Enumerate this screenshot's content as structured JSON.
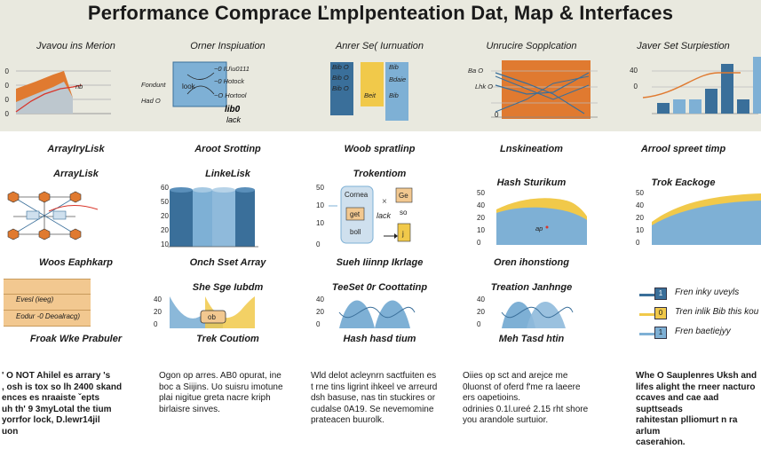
{
  "title": "Performance Comprace Ľmplpenteation Dat, Map & Interfaces",
  "colors": {
    "orange": "#e07a30",
    "blue": "#7eb0d5",
    "dark_blue": "#3a6f9a",
    "yellow": "#f1c94a",
    "red": "#d9362b",
    "band": "#e9e9df"
  },
  "columns": [
    {
      "top_title": "Jvavou ins Merion",
      "top_ticks": [
        "0",
        "0",
        "0",
        "0"
      ],
      "top_note": "nb",
      "section_a": "ArrayIryLisk",
      "section_b": "ArrayLisk",
      "section_c": "Woos Eaphkarp",
      "table_rows": [
        "Evesl (ieeg)",
        "Eodur -0 Deoalracg)"
      ],
      "section_d": "Froak Wke Prabuler",
      "paragraph": "' O NOT Ahilel es arrary 's\n, osh is tox so lh 2400 skand\nences es nraaiste ˇepts\nuh th' 9 3myLotal the tium\nyorrfor lock, D.lewr14jil\nuon"
    },
    {
      "top_title": "Orner Inspiuation",
      "top_labels": [
        "Fondunt",
        "Had O"
      ],
      "top_box_text": [
        "look",
        "~0 IU\\u0111",
        "~0 Hotock",
        "~O Hortool"
      ],
      "top_note_1": "lib0",
      "top_note_2": "lack",
      "section_a": "Aroot Srottinp",
      "section_b": "LinkeLisk",
      "ticks": [
        "60",
        "50",
        "20",
        "20",
        "10"
      ],
      "section_c": "Onch Sset Array",
      "section_d": "She Sge Iubdm",
      "wave_ticks": [
        "40",
        "20",
        "0"
      ],
      "wave_label": "ob",
      "section_e": "Trek Coutiom",
      "paragraph": "Ogon op arres. AB0 opurat, ine\nboc a Siijins. Uo suisru imotune\nplai nigitue greta nacre kriph\nbirlaisre sinves."
    },
    {
      "top_title": "Anrer Se( Iurnuation",
      "box_labels": [
        "Bib O",
        "Bib O",
        "Bib O",
        "Beit",
        "Bib",
        "Bdaie"
      ],
      "section_a": "Woob spratlinp",
      "section_b": "Trokentiom",
      "ticks": [
        "50",
        "10",
        "10",
        "0"
      ],
      "card_labels": [
        "Cornea",
        "Ge",
        "get",
        "lack",
        "so",
        "boll",
        "j"
      ],
      "section_c": "Sueh Iiinnp Ikrlage",
      "section_d": "TeeSet 0r Coottatinp",
      "wave_ticks": [
        "40",
        "20",
        "0"
      ],
      "section_e": "Hash hasd tium",
      "paragraph": "Wld delot acleynrn sactfuiten es\nt rne tins ligrint ihkeel ve arreurd\ndsh basuse, nas tin stuckires or\ncudalse 0A19. Se nevemomine\nprateacen buurolk."
    },
    {
      "top_title": "Unrucire Sopplcation",
      "top_labels": [
        "Ba O",
        "Lhk O",
        "0"
      ],
      "section_a": "Lnskineatiom",
      "section_b": "Hash Sturikum",
      "ticks": [
        "50",
        "40",
        "20",
        "10",
        "0"
      ],
      "area_note": "ap",
      "section_c": "Oren ihonstiong",
      "section_d": "Treation Janhnge",
      "wave_ticks": [
        "40",
        "20",
        "0"
      ],
      "section_e": "Meh Tasd htin",
      "paragraph": "Oiies op sct and arejce me\n0luonst of oferd f'me ra laeere\ners oapetioins.\nodrinies 0.1l.ureé 2.15 rht shore\nyou arandole surtuior."
    },
    {
      "top_title": "Javer Set Surpiestion",
      "top_ticks": [
        "40",
        "0"
      ],
      "section_a": "Arrool spreet timp",
      "section_b": "Trok Eackoge",
      "ticks": [
        "50",
        "40",
        "20",
        "10",
        "0"
      ],
      "legend": [
        {
          "sq": "1",
          "text": "Fren inky uveyls"
        },
        {
          "sq": "0",
          "text": "Tren inlik Bib this kou"
        },
        {
          "sq": "1",
          "text": "Fren baetiejyy"
        }
      ],
      "paragraph": "Whe O Sauplenres Uksh and\nlifes alight the rneer nacturo\nccaves and cae aad supttseads\nrahitestan plliomurt n ra arlum\ncaserahion."
    }
  ]
}
